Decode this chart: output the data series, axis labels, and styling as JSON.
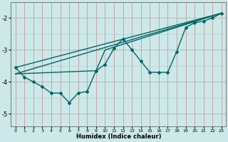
{
  "xlabel": "Humidex (Indice chaleur)",
  "bg_color": "#cce8e8",
  "grid_color_major": "#cc9999",
  "grid_color_minor": "#aacccc",
  "line_color": "#006666",
  "xlim": [
    -0.5,
    23.5
  ],
  "ylim": [
    -5.4,
    -1.5
  ],
  "yticks": [
    -5,
    -4,
    -3,
    -2
  ],
  "xticks": [
    0,
    1,
    2,
    3,
    4,
    5,
    6,
    7,
    8,
    9,
    10,
    11,
    12,
    13,
    14,
    15,
    16,
    17,
    18,
    19,
    20,
    21,
    22,
    23
  ],
  "zigzag_x": [
    0,
    1,
    2,
    3,
    4,
    5,
    6,
    7,
    8,
    9,
    10,
    11,
    12,
    13,
    14,
    15,
    16,
    17,
    18,
    19,
    20,
    21,
    22,
    23
  ],
  "zigzag_y": [
    -3.55,
    -3.85,
    -4.0,
    -4.15,
    -4.35,
    -4.35,
    -4.65,
    -4.35,
    -4.3,
    -3.65,
    -3.45,
    -2.95,
    -2.65,
    -3.0,
    -3.35,
    -3.7,
    -3.7,
    -3.7,
    -3.05,
    -2.3,
    -2.15,
    -2.1,
    -2.0,
    -1.85
  ],
  "line1_x": [
    0,
    23
  ],
  "line1_y": [
    -3.55,
    -1.85
  ],
  "line2_x": [
    0,
    23
  ],
  "line2_y": [
    -3.75,
    -1.85
  ],
  "line3_x": [
    0,
    9,
    10,
    23
  ],
  "line3_y": [
    -3.75,
    -3.65,
    -3.0,
    -1.85
  ]
}
